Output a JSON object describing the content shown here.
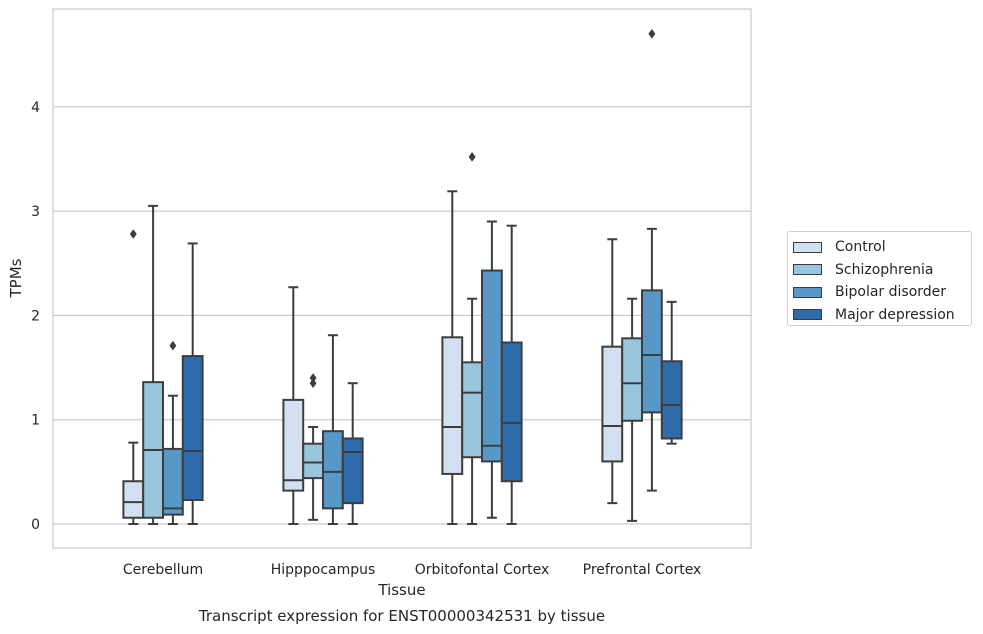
{
  "chart_data": {
    "type": "box",
    "xlabel": "Tissue",
    "ylabel": "TPMs",
    "caption": "Transcript expression for ENST00000342531 by tissue",
    "categories": [
      "Cerebellum",
      "Hipppocampus",
      "Orbitofontal Cortex",
      "Prefrontal Cortex"
    ],
    "ylim": [
      -0.23,
      5.0
    ],
    "yticks": [
      0,
      1,
      2,
      3,
      4
    ],
    "grid": "horizontal",
    "legend_position": "right",
    "series": [
      {
        "name": "Control",
        "color": "#d2e1f1",
        "boxes": [
          {
            "whislo": 0.0,
            "q1": 0.06,
            "median": 0.21,
            "q3": 0.41,
            "whishi": 0.78,
            "fliers": [
              2.78
            ]
          },
          {
            "whislo": 0.0,
            "q1": 0.32,
            "median": 0.42,
            "q3": 1.19,
            "whishi": 2.27,
            "fliers": []
          },
          {
            "whislo": 0.0,
            "q1": 0.48,
            "median": 0.93,
            "q3": 1.79,
            "whishi": 3.19,
            "fliers": []
          },
          {
            "whislo": 0.2,
            "q1": 0.6,
            "median": 0.94,
            "q3": 1.7,
            "whishi": 2.73,
            "fliers": []
          }
        ]
      },
      {
        "name": "Schizophrenia",
        "color": "#9ac5de",
        "boxes": [
          {
            "whislo": 0.0,
            "q1": 0.06,
            "median": 0.71,
            "q3": 1.36,
            "whishi": 3.05,
            "fliers": []
          },
          {
            "whislo": 0.04,
            "q1": 0.44,
            "median": 0.59,
            "q3": 0.77,
            "whishi": 0.93,
            "fliers": [
              1.35,
              1.4
            ]
          },
          {
            "whislo": 0.0,
            "q1": 0.64,
            "median": 1.26,
            "q3": 1.55,
            "whishi": 2.16,
            "fliers": [
              3.52
            ]
          },
          {
            "whislo": 0.03,
            "q1": 0.99,
            "median": 1.35,
            "q3": 1.78,
            "whishi": 2.16,
            "fliers": []
          }
        ]
      },
      {
        "name": "Bipolar disorder",
        "color": "#5798c8",
        "boxes": [
          {
            "whislo": 0.0,
            "q1": 0.09,
            "median": 0.15,
            "q3": 0.72,
            "whishi": 1.23,
            "fliers": [
              1.71
            ]
          },
          {
            "whislo": 0.0,
            "q1": 0.15,
            "median": 0.5,
            "q3": 0.89,
            "whishi": 1.81,
            "fliers": []
          },
          {
            "whislo": 0.06,
            "q1": 0.6,
            "median": 0.75,
            "q3": 2.43,
            "whishi": 2.9,
            "fliers": []
          },
          {
            "whislo": 0.32,
            "q1": 1.07,
            "median": 1.62,
            "q3": 2.24,
            "whishi": 2.83,
            "fliers": [
              4.7
            ]
          }
        ]
      },
      {
        "name": "Major depression",
        "color": "#2e6cab",
        "boxes": [
          {
            "whislo": 0.0,
            "q1": 0.23,
            "median": 0.7,
            "q3": 1.61,
            "whishi": 2.69,
            "fliers": []
          },
          {
            "whislo": 0.0,
            "q1": 0.2,
            "median": 0.69,
            "q3": 0.82,
            "whishi": 1.35,
            "fliers": []
          },
          {
            "whislo": 0.0,
            "q1": 0.41,
            "median": 0.97,
            "q3": 1.74,
            "whishi": 2.86,
            "fliers": []
          },
          {
            "whislo": 0.77,
            "q1": 0.82,
            "median": 1.14,
            "q3": 1.56,
            "whishi": 2.13,
            "fliers": []
          }
        ]
      }
    ]
  }
}
